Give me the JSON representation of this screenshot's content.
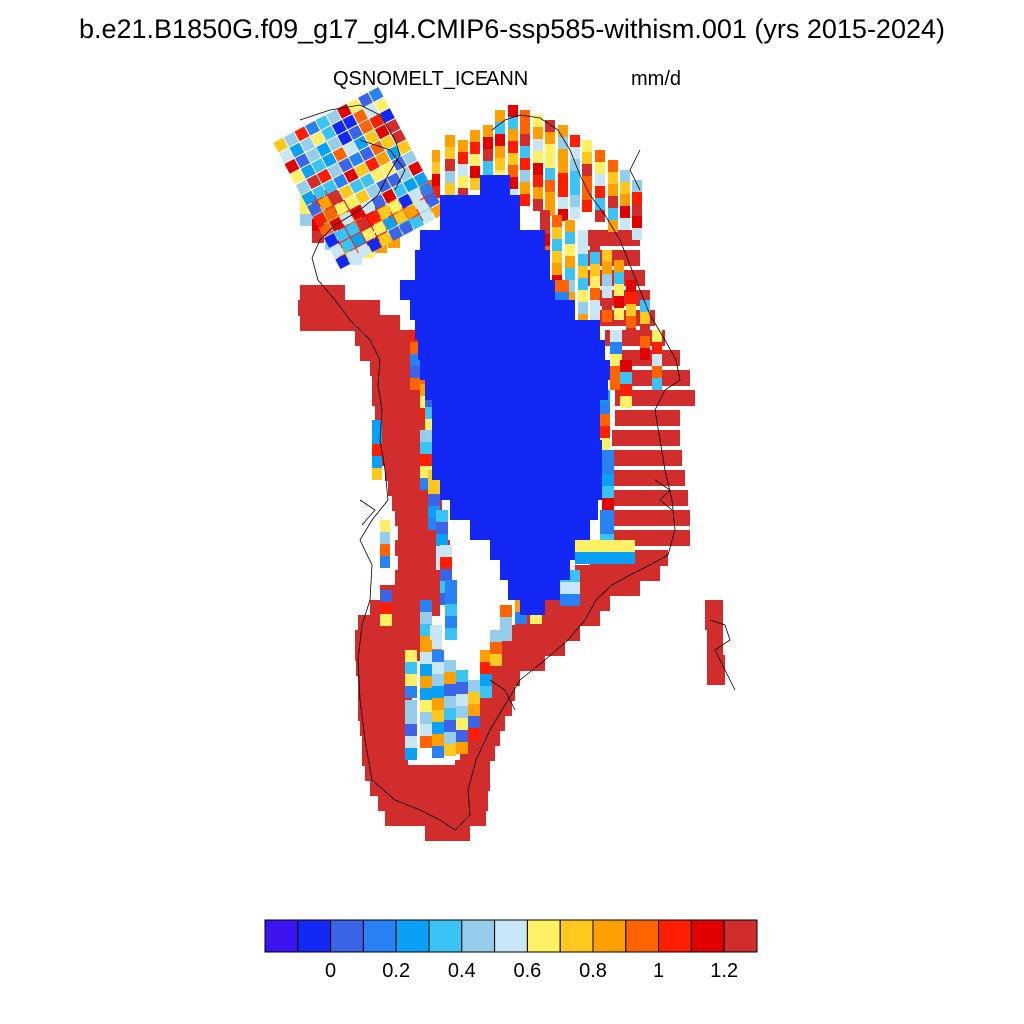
{
  "title": "b.e21.B1850G.f09_g17_gl4.CMIP6-ssp585-withism.001 (yrs 2015-2024)",
  "subtitle": {
    "variable": "QSNOMELT_ICE",
    "season": "ANN",
    "units": "mm/d"
  },
  "colorbar": {
    "colors": [
      "#3b14f0",
      "#1428f5",
      "#3c64e6",
      "#2882f5",
      "#0aa0f5",
      "#3cc3f5",
      "#96cdeb",
      "#c8e6f5",
      "#fff064",
      "#ffc81e",
      "#ffa000",
      "#ff6400",
      "#ff1e00",
      "#e10000",
      "#d22d2d"
    ],
    "tick_labels": [
      "0",
      "0.2",
      "0.4",
      "0.6",
      "0.8",
      "1",
      "1.2"
    ]
  },
  "map_data": {
    "region": "Greenland",
    "description_values": "Annual mean snowmelt over ice (mm/d): interior ~0, margins exceed 1.2",
    "interior_value_class": 1,
    "margin_value_class": 14
  }
}
